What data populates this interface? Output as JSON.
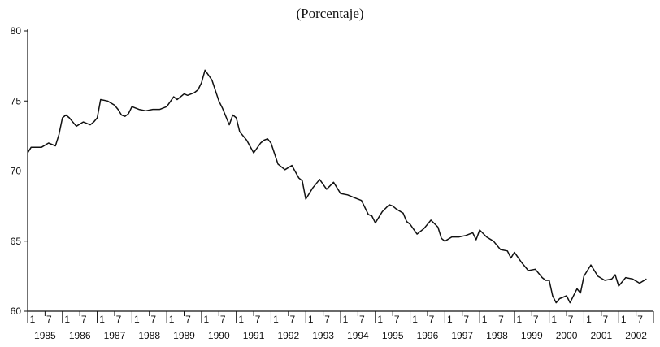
{
  "chart_data": {
    "type": "line",
    "title": "(Porcentaje)",
    "xlabel": "",
    "ylabel": "",
    "ylim": [
      60,
      80
    ],
    "y_ticks": [
      60,
      65,
      70,
      75,
      80
    ],
    "x_range": [
      1985.0,
      2003.0
    ],
    "month_tick_labels": [
      "1",
      "7"
    ],
    "year_labels": [
      "1985",
      "1986",
      "1987",
      "1988",
      "1989",
      "1990",
      "1991",
      "1992",
      "1993",
      "1994",
      "1995",
      "1996",
      "1997",
      "1998",
      "1999",
      "2000",
      "2001",
      "2002"
    ],
    "grid": false,
    "legend": "none",
    "line_color": "#111111",
    "series": [
      {
        "x": [
          1985.0,
          1985.1,
          1985.2,
          1985.4,
          1985.6,
          1985.8,
          1985.9,
          1986.0,
          1986.1,
          1986.2,
          1986.4,
          1986.6,
          1986.8,
          1986.9,
          1987.0,
          1987.1,
          1987.3,
          1987.5,
          1987.6,
          1987.7,
          1987.8,
          1987.9,
          1988.0,
          1988.2,
          1988.4,
          1988.6,
          1988.8,
          1989.0,
          1989.2,
          1989.3,
          1989.5,
          1989.6,
          1989.8,
          1989.9,
          1990.0,
          1990.1,
          1990.3,
          1990.5,
          1990.6,
          1990.8,
          1990.9,
          1991.0,
          1991.1,
          1991.3,
          1991.5,
          1991.7,
          1991.8,
          1991.9,
          1992.0,
          1992.2,
          1992.4,
          1992.6,
          1992.8,
          1992.9,
          1993.0,
          1993.2,
          1993.4,
          1993.6,
          1993.8,
          1993.9,
          1994.0,
          1994.2,
          1994.4,
          1994.6,
          1994.8,
          1994.9,
          1995.0,
          1995.2,
          1995.4,
          1995.5,
          1995.6,
          1995.8,
          1995.9,
          1996.0,
          1996.2,
          1996.4,
          1996.6,
          1996.8,
          1996.9,
          1997.0,
          1997.2,
          1997.4,
          1997.6,
          1997.8,
          1997.9,
          1998.0,
          1998.2,
          1998.4,
          1998.6,
          1998.8,
          1998.9,
          1999.0,
          1999.2,
          1999.4,
          1999.6,
          1999.8,
          1999.9,
          2000.0,
          2000.1,
          2000.2,
          2000.3,
          2000.5,
          2000.6,
          2000.8,
          2000.9,
          2001.0,
          2001.2,
          2001.4,
          2001.6,
          2001.8,
          2001.9,
          2002.0,
          2002.2,
          2002.4,
          2002.6,
          2002.8
        ],
        "y": [
          71.3,
          71.7,
          71.7,
          71.7,
          72.0,
          71.8,
          72.6,
          73.8,
          74.0,
          73.8,
          73.2,
          73.5,
          73.3,
          73.5,
          73.8,
          75.1,
          75.0,
          74.7,
          74.4,
          74.0,
          73.9,
          74.1,
          74.6,
          74.4,
          74.3,
          74.4,
          74.4,
          74.6,
          75.3,
          75.1,
          75.5,
          75.4,
          75.6,
          75.8,
          76.3,
          77.2,
          76.5,
          75.0,
          74.5,
          73.3,
          74.0,
          73.8,
          72.8,
          72.2,
          71.3,
          72.0,
          72.2,
          72.3,
          72.0,
          70.5,
          70.1,
          70.4,
          69.5,
          69.3,
          68.0,
          68.8,
          69.4,
          68.7,
          69.2,
          68.8,
          68.4,
          68.3,
          68.1,
          67.9,
          66.9,
          66.8,
          66.3,
          67.1,
          67.6,
          67.5,
          67.3,
          67.0,
          66.4,
          66.2,
          65.5,
          65.9,
          66.5,
          66.0,
          65.2,
          65.0,
          65.3,
          65.3,
          65.4,
          65.6,
          65.1,
          65.8,
          65.3,
          65.0,
          64.4,
          64.3,
          63.8,
          64.2,
          63.5,
          62.9,
          63.0,
          62.4,
          62.2,
          62.2,
          61.1,
          60.6,
          60.9,
          61.1,
          60.6,
          61.6,
          61.3,
          62.5,
          63.3,
          62.5,
          62.2,
          62.3,
          62.6,
          61.8,
          62.4,
          62.3,
          62.0,
          62.3
        ]
      }
    ]
  }
}
